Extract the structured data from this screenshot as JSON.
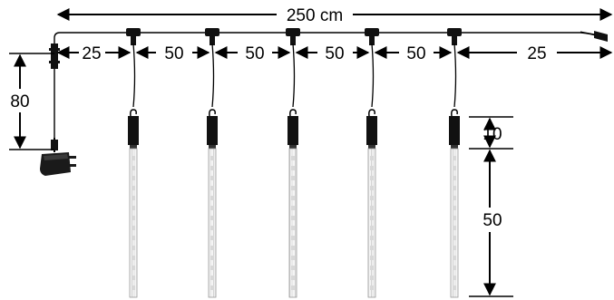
{
  "dimensions": {
    "total_length": "250 cm",
    "segment_start": "25",
    "segment_1": "50",
    "segment_2": "50",
    "segment_3": "50",
    "segment_4": "50",
    "segment_end": "25",
    "plug_drop": "80",
    "tube_cap": "10",
    "tube_length": "50"
  },
  "colors": {
    "line": "#000000",
    "tube_fill": "#f2f2f2",
    "tube_stroke": "#9a9a9a",
    "connector": "#111111"
  },
  "components": {
    "tube_count": 5,
    "power_plug_icon": "power-plug-icon",
    "tube_icon": "led-icicle-tube-icon",
    "connector_icon": "t-connector-icon"
  }
}
